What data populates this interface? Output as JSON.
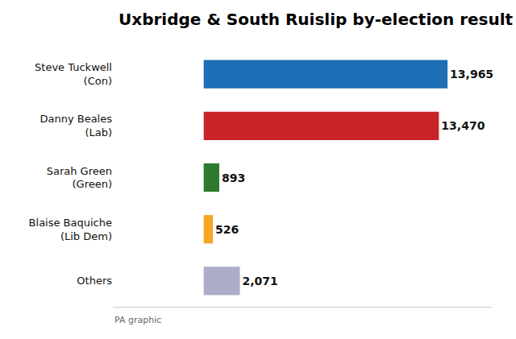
{
  "chart_data": {
    "type": "bar",
    "orientation": "horizontal",
    "title": "Uxbridge & South Ruislip by-election result",
    "annotations": [
      "PA graphic"
    ],
    "categories": [
      "Steve Tuckwell\n(Con)",
      "Danny Beales\n(Lab)",
      "Sarah Green\n(Green)",
      "Blaise Baquiche\n(Lib Dem)",
      "Others"
    ],
    "values": [
      13965,
      13470,
      893,
      526,
      2071
    ],
    "value_labels": [
      "13,965",
      "13,470",
      "893",
      "526",
      "2,071"
    ],
    "colors": [
      "#1C6EB5",
      "#C8242A",
      "#2D7A2D",
      "#F5A623",
      "#ADADC9"
    ],
    "xlim": [
      -5200,
      16500
    ],
    "data_labels": true,
    "tick_labels": "y",
    "grid": false
  }
}
